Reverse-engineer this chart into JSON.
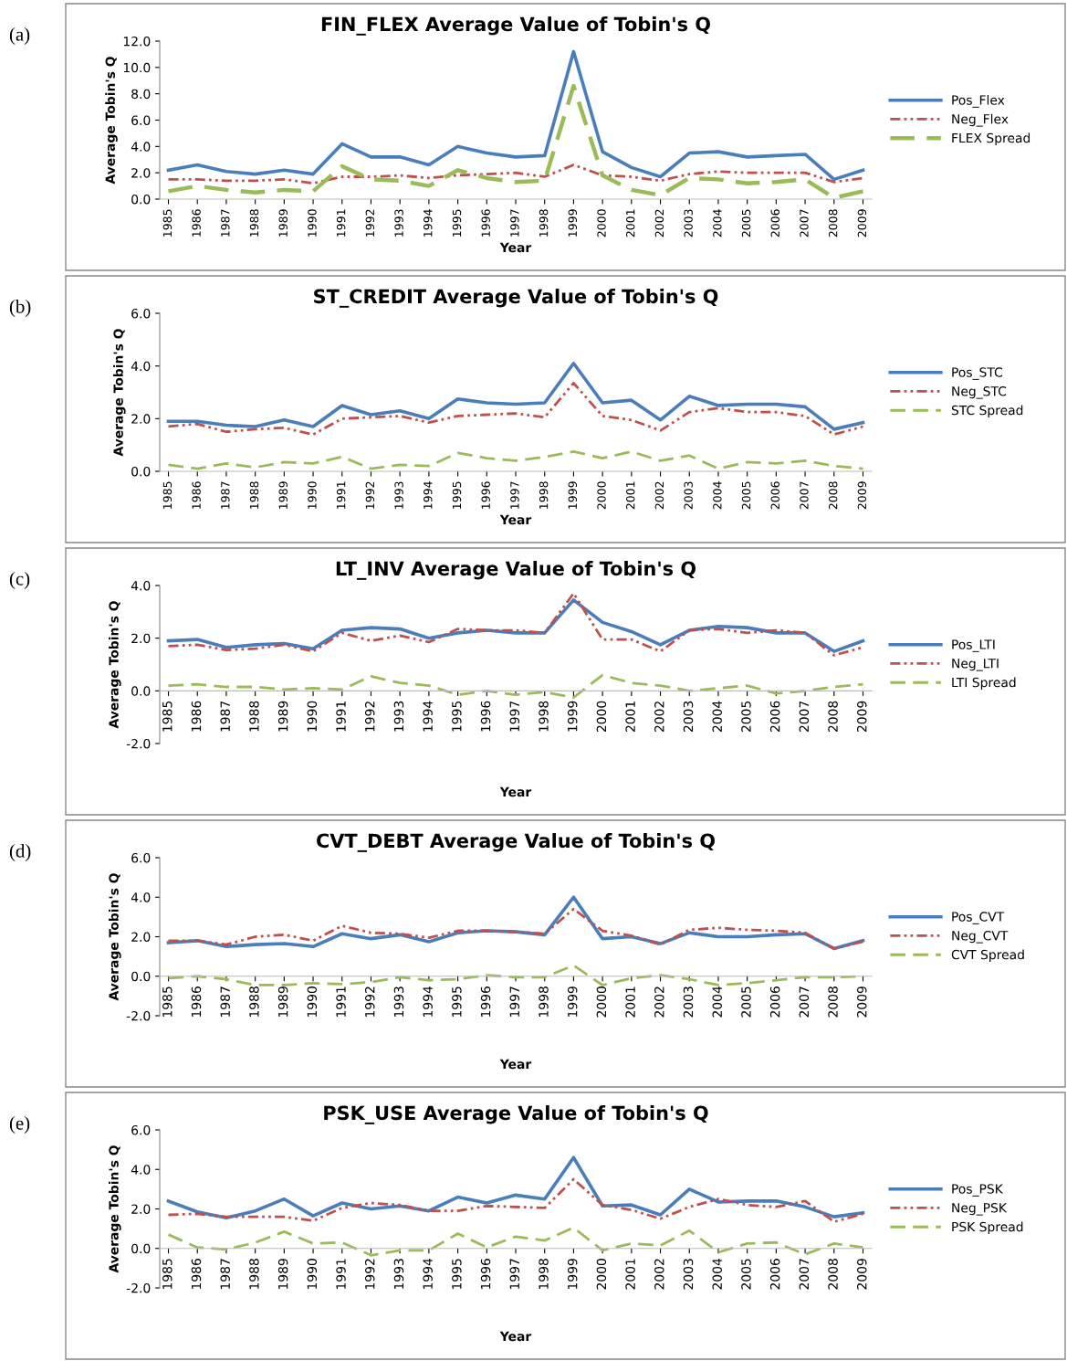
{
  "chart_data": [
    {
      "type": "line",
      "title": "FIN_FLEX Average Value of Tobin's Q",
      "xlabel": "Year",
      "ylabel": "Average Tobin's Q",
      "annotations": [
        "(a)"
      ],
      "legend": "right",
      "grid": false,
      "marker": "none",
      "categories": [
        "1985",
        "1986",
        "1987",
        "1988",
        "1989",
        "1990",
        "1991",
        "1992",
        "1993",
        "1994",
        "1995",
        "1996",
        "1997",
        "1998",
        "1999",
        "2000",
        "2001",
        "2002",
        "2003",
        "2004",
        "2005",
        "2006",
        "2007",
        "2008",
        "2009"
      ],
      "ylim": [
        0,
        12
      ],
      "yticks": [
        {
          "value": 0,
          "label": "0.0"
        },
        {
          "value": 2,
          "label": "2.0"
        },
        {
          "value": 4,
          "label": "4.0"
        },
        {
          "value": 6,
          "label": "6.0"
        },
        {
          "value": 8,
          "label": "8.0"
        },
        {
          "value": 10,
          "label": "10.0"
        },
        {
          "value": 12,
          "label": "12.0"
        }
      ],
      "series": [
        {
          "name": "Pos_Flex",
          "color": "#4a7ebb",
          "line_style": "solid",
          "values": [
            2.2,
            2.6,
            2.1,
            1.9,
            2.2,
            1.9,
            4.2,
            3.2,
            3.2,
            2.6,
            4.0,
            3.5,
            3.2,
            3.3,
            11.2,
            3.6,
            2.4,
            1.7,
            3.5,
            3.6,
            3.2,
            3.3,
            3.4,
            1.5,
            2.2
          ]
        },
        {
          "name": "Neg_Flex",
          "color": "#c0504d",
          "line_style": "dashdot",
          "values": [
            1.5,
            1.5,
            1.4,
            1.4,
            1.5,
            1.2,
            1.7,
            1.7,
            1.8,
            1.6,
            1.8,
            1.9,
            2.0,
            1.7,
            2.6,
            1.8,
            1.7,
            1.4,
            1.9,
            2.1,
            2.0,
            2.0,
            2.0,
            1.3,
            1.6
          ]
        },
        {
          "name": "FLEX Spread",
          "color": "#9bbb59",
          "line_style": "dashed",
          "values": [
            0.6,
            1.0,
            0.7,
            0.5,
            0.7,
            0.6,
            2.5,
            1.5,
            1.4,
            1.0,
            2.2,
            1.6,
            1.3,
            1.4,
            8.6,
            1.8,
            0.7,
            0.3,
            1.6,
            1.5,
            1.2,
            1.3,
            1.5,
            0.1,
            0.6
          ]
        }
      ]
    },
    {
      "type": "line",
      "title": "ST_CREDIT Average Value of Tobin's Q",
      "xlabel": "Year",
      "ylabel": "Average Tobin's Q",
      "annotations": [
        "(b)"
      ],
      "legend": "right",
      "grid": false,
      "marker": "none",
      "categories": [
        "1985",
        "1986",
        "1987",
        "1988",
        "1989",
        "1990",
        "1991",
        "1992",
        "1993",
        "1994",
        "1995",
        "1996",
        "1997",
        "1998",
        "1999",
        "2000",
        "2001",
        "2002",
        "2003",
        "2004",
        "2005",
        "2006",
        "2007",
        "2008",
        "2009"
      ],
      "ylim": [
        0,
        6
      ],
      "yticks": [
        {
          "value": 0,
          "label": "0.0"
        },
        {
          "value": 2,
          "label": "2.0"
        },
        {
          "value": 4,
          "label": "4.0"
        },
        {
          "value": 6,
          "label": "6.0"
        }
      ],
      "series": [
        {
          "name": "Pos_STC",
          "color": "#4a7ebb",
          "line_style": "solid",
          "values": [
            1.9,
            1.9,
            1.75,
            1.7,
            1.95,
            1.7,
            2.5,
            2.15,
            2.3,
            2.0,
            2.75,
            2.6,
            2.55,
            2.6,
            4.1,
            2.6,
            2.7,
            1.95,
            2.85,
            2.5,
            2.55,
            2.55,
            2.45,
            1.6,
            1.85
          ]
        },
        {
          "name": "Neg_STC",
          "color": "#c0504d",
          "line_style": "dashdot",
          "values": [
            1.7,
            1.8,
            1.5,
            1.6,
            1.65,
            1.4,
            2.0,
            2.05,
            2.1,
            1.85,
            2.1,
            2.15,
            2.2,
            2.05,
            3.35,
            2.1,
            1.95,
            1.55,
            2.25,
            2.4,
            2.25,
            2.25,
            2.1,
            1.4,
            1.7
          ]
        },
        {
          "name": "STC Spread",
          "color": "#9bbb59",
          "line_style": "dashed",
          "values": [
            0.25,
            0.1,
            0.3,
            0.15,
            0.35,
            0.3,
            0.55,
            0.1,
            0.25,
            0.2,
            0.7,
            0.5,
            0.4,
            0.55,
            0.75,
            0.5,
            0.75,
            0.4,
            0.6,
            0.1,
            0.35,
            0.3,
            0.4,
            0.2,
            0.1
          ]
        }
      ]
    },
    {
      "type": "line",
      "title": "LT_INV Average Value of Tobin's Q",
      "xlabel": "Year",
      "ylabel": "Average Tobin's Q",
      "annotations": [
        "(c)"
      ],
      "legend": "right",
      "grid": false,
      "marker": "none",
      "categories": [
        "1985",
        "1986",
        "1987",
        "1988",
        "1989",
        "1990",
        "1991",
        "1992",
        "1993",
        "1994",
        "1995",
        "1996",
        "1997",
        "1998",
        "1999",
        "2000",
        "2001",
        "2002",
        "2003",
        "2004",
        "2005",
        "2006",
        "2007",
        "2008",
        "2009"
      ],
      "ylim": [
        -2,
        4
      ],
      "yticks": [
        {
          "value": -2,
          "label": "-2.0"
        },
        {
          "value": 0,
          "label": "0.0"
        },
        {
          "value": 2,
          "label": "2.0"
        },
        {
          "value": 4,
          "label": "4.0"
        }
      ],
      "series": [
        {
          "name": "Pos_LTI",
          "color": "#4a7ebb",
          "line_style": "solid",
          "values": [
            1.9,
            1.95,
            1.65,
            1.75,
            1.8,
            1.6,
            2.3,
            2.4,
            2.35,
            2.0,
            2.2,
            2.3,
            2.2,
            2.2,
            3.45,
            2.6,
            2.25,
            1.75,
            2.3,
            2.45,
            2.4,
            2.2,
            2.2,
            1.5,
            1.9
          ]
        },
        {
          "name": "Neg_LTI",
          "color": "#c0504d",
          "line_style": "dashdot",
          "values": [
            1.7,
            1.75,
            1.55,
            1.6,
            1.75,
            1.5,
            2.2,
            1.9,
            2.1,
            1.85,
            2.35,
            2.3,
            2.3,
            2.2,
            3.7,
            1.95,
            1.95,
            1.5,
            2.3,
            2.35,
            2.2,
            2.3,
            2.2,
            1.35,
            1.65
          ]
        },
        {
          "name": "LTI Spread",
          "color": "#9bbb59",
          "line_style": "dashed",
          "values": [
            0.2,
            0.25,
            0.15,
            0.15,
            0.05,
            0.1,
            0.05,
            0.55,
            0.3,
            0.2,
            -0.15,
            0.0,
            -0.15,
            -0.05,
            -0.25,
            0.6,
            0.3,
            0.2,
            0.0,
            0.1,
            0.2,
            -0.1,
            0.0,
            0.15,
            0.25
          ]
        }
      ]
    },
    {
      "type": "line",
      "title": "CVT_DEBT Average Value of Tobin's Q",
      "xlabel": "Year",
      "ylabel": "Average Tobin's Q",
      "annotations": [
        "(d)"
      ],
      "legend": "right",
      "grid": false,
      "marker": "none",
      "categories": [
        "1985",
        "1986",
        "1987",
        "1988",
        "1989",
        "1990",
        "1991",
        "1992",
        "1993",
        "1994",
        "1995",
        "1996",
        "1997",
        "1998",
        "1999",
        "2000",
        "2001",
        "2002",
        "2003",
        "2004",
        "2005",
        "2006",
        "2007",
        "2008",
        "2009"
      ],
      "ylim": [
        -2,
        6
      ],
      "yticks": [
        {
          "value": -2,
          "label": "-2.0"
        },
        {
          "value": 0,
          "label": "0.0"
        },
        {
          "value": 2,
          "label": "2.0"
        },
        {
          "value": 4,
          "label": "4.0"
        },
        {
          "value": 6,
          "label": "6.0"
        }
      ],
      "series": [
        {
          "name": "Pos_CVT",
          "color": "#4a7ebb",
          "line_style": "solid",
          "values": [
            1.7,
            1.8,
            1.5,
            1.6,
            1.65,
            1.5,
            2.15,
            1.9,
            2.1,
            1.75,
            2.2,
            2.3,
            2.25,
            2.1,
            4.0,
            1.9,
            2.0,
            1.65,
            2.2,
            2.0,
            2.0,
            2.1,
            2.15,
            1.4,
            1.8
          ]
        },
        {
          "name": "Neg_CVT",
          "color": "#c0504d",
          "line_style": "dashdot",
          "values": [
            1.8,
            1.8,
            1.6,
            2.0,
            2.1,
            1.8,
            2.55,
            2.2,
            2.15,
            1.95,
            2.3,
            2.3,
            2.25,
            2.15,
            3.4,
            2.3,
            2.05,
            1.6,
            2.35,
            2.45,
            2.35,
            2.3,
            2.2,
            1.4,
            1.75
          ]
        },
        {
          "name": "CVT Spread",
          "color": "#9bbb59",
          "line_style": "dashed",
          "values": [
            -0.1,
            0.0,
            -0.15,
            -0.45,
            -0.45,
            -0.35,
            -0.4,
            -0.3,
            -0.05,
            -0.2,
            -0.15,
            0.05,
            -0.05,
            -0.05,
            0.55,
            -0.45,
            -0.1,
            0.05,
            -0.15,
            -0.45,
            -0.35,
            -0.2,
            -0.05,
            -0.05,
            0.0
          ]
        }
      ]
    },
    {
      "type": "line",
      "title": "PSK_USE Average Value of Tobin's Q",
      "xlabel": "Year",
      "ylabel": "Average Tobin's Q",
      "annotations": [
        "(e)"
      ],
      "legend": "right",
      "grid": false,
      "marker": "none",
      "categories": [
        "1985",
        "1986",
        "1987",
        "1988",
        "1989",
        "1990",
        "1991",
        "1992",
        "1993",
        "1994",
        "1995",
        "1996",
        "1997",
        "1998",
        "1999",
        "2000",
        "2001",
        "2002",
        "2003",
        "2004",
        "2005",
        "2006",
        "2007",
        "2008",
        "2009"
      ],
      "ylim": [
        -2,
        6
      ],
      "yticks": [
        {
          "value": -2,
          "label": "-2.0"
        },
        {
          "value": 0,
          "label": "0.0"
        },
        {
          "value": 2,
          "label": "2.0"
        },
        {
          "value": 4,
          "label": "4.0"
        },
        {
          "value": 6,
          "label": "6.0"
        }
      ],
      "series": [
        {
          "name": "Pos_PSK",
          "color": "#4a7ebb",
          "line_style": "solid",
          "values": [
            2.4,
            1.85,
            1.55,
            1.9,
            2.5,
            1.65,
            2.3,
            2.0,
            2.15,
            1.9,
            2.6,
            2.3,
            2.7,
            2.5,
            4.6,
            2.15,
            2.2,
            1.7,
            3.0,
            2.35,
            2.4,
            2.4,
            2.1,
            1.6,
            1.8
          ]
        },
        {
          "name": "Neg_PSK",
          "color": "#c0504d",
          "line_style": "dashdot",
          "values": [
            1.7,
            1.75,
            1.6,
            1.6,
            1.6,
            1.4,
            2.05,
            2.3,
            2.2,
            1.9,
            1.9,
            2.15,
            2.1,
            2.05,
            3.5,
            2.2,
            1.95,
            1.5,
            2.1,
            2.5,
            2.2,
            2.1,
            2.4,
            1.35,
            1.75
          ]
        },
        {
          "name": "PSK Spread",
          "color": "#9bbb59",
          "line_style": "dashed",
          "values": [
            0.7,
            0.05,
            -0.05,
            0.3,
            0.85,
            0.25,
            0.3,
            -0.35,
            -0.1,
            -0.1,
            0.75,
            0.05,
            0.6,
            0.4,
            1.05,
            -0.1,
            0.25,
            0.15,
            0.9,
            -0.2,
            0.25,
            0.3,
            -0.3,
            0.25,
            0.05
          ]
        }
      ]
    }
  ]
}
